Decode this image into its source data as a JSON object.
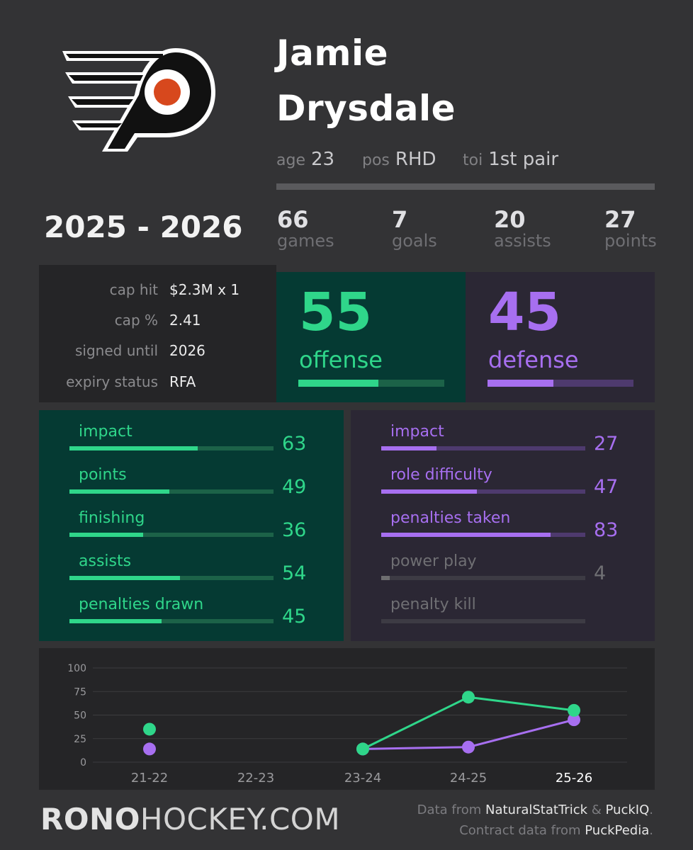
{
  "player": {
    "first_name": "Jamie",
    "last_name": "Drysdale",
    "age_label": "age",
    "age": "23",
    "pos_label": "pos",
    "pos": "RHD",
    "toi_label": "toi",
    "toi": "1st pair"
  },
  "season": "2025 - 2026",
  "stats": [
    {
      "value": "66",
      "label": "games"
    },
    {
      "value": "7",
      "label": "goals"
    },
    {
      "value": "20",
      "label": "assists"
    },
    {
      "value": "27",
      "label": "points"
    }
  ],
  "contract": [
    {
      "label": "cap hit",
      "value": "$2.3M x 1"
    },
    {
      "label": "cap %",
      "value": "2.41"
    },
    {
      "label": "signed until",
      "value": "2026"
    },
    {
      "label": "expiry status",
      "value": "RFA"
    }
  ],
  "ratings": {
    "offense": {
      "value": "55",
      "label": "offense",
      "percent": 55
    },
    "defense": {
      "value": "45",
      "label": "defense",
      "percent": 45
    }
  },
  "offense_detail": [
    {
      "label": "impact",
      "value": "63",
      "percent": 63
    },
    {
      "label": "points",
      "value": "49",
      "percent": 49
    },
    {
      "label": "finishing",
      "value": "36",
      "percent": 36
    },
    {
      "label": "assists",
      "value": "54",
      "percent": 54
    },
    {
      "label": "penalties drawn",
      "value": "45",
      "percent": 45
    }
  ],
  "defense_detail": [
    {
      "label": "impact",
      "value": "27",
      "percent": 27,
      "active": true
    },
    {
      "label": "role difficulty",
      "value": "47",
      "percent": 47,
      "active": true
    },
    {
      "label": "penalties taken",
      "value": "83",
      "percent": 83,
      "active": true
    },
    {
      "label": "power play",
      "value": "4",
      "percent": 4,
      "active": false
    },
    {
      "label": "penalty kill",
      "value": "",
      "percent": 0,
      "active": false
    }
  ],
  "colors": {
    "offense": "#2fd68a",
    "offense_track": "#1c6248",
    "defense": "#a76ff0",
    "defense_track": "#4e3a6e",
    "inactive_text": "#6f6f73",
    "inactive_fill": "#6e6e70",
    "inactive_track": "#3d3b44",
    "logo_orange": "#d7481d"
  },
  "chart_data": {
    "type": "line",
    "categories": [
      "21-22",
      "22-23",
      "23-24",
      "24-25",
      "25-26"
    ],
    "highlight_category": "25-26",
    "ylim": [
      0,
      100
    ],
    "yticks": [
      0,
      25,
      50,
      75,
      100
    ],
    "grid": true,
    "series": [
      {
        "name": "offense",
        "values": [
          35,
          null,
          14,
          69,
          55
        ]
      },
      {
        "name": "defense",
        "values": [
          14,
          null,
          14,
          16,
          45
        ]
      }
    ]
  },
  "footer": {
    "brand_bold": "RONO",
    "brand_light": "HOCKEY.COM",
    "credit1_pre": "Data from ",
    "credit1_a": "NaturalStatTrick",
    "credit1_mid": " & ",
    "credit1_b": "PuckIQ",
    "credit1_post": ".",
    "credit2_pre": "Contract data from ",
    "credit2_a": "PuckPedia",
    "credit2_post": "."
  }
}
